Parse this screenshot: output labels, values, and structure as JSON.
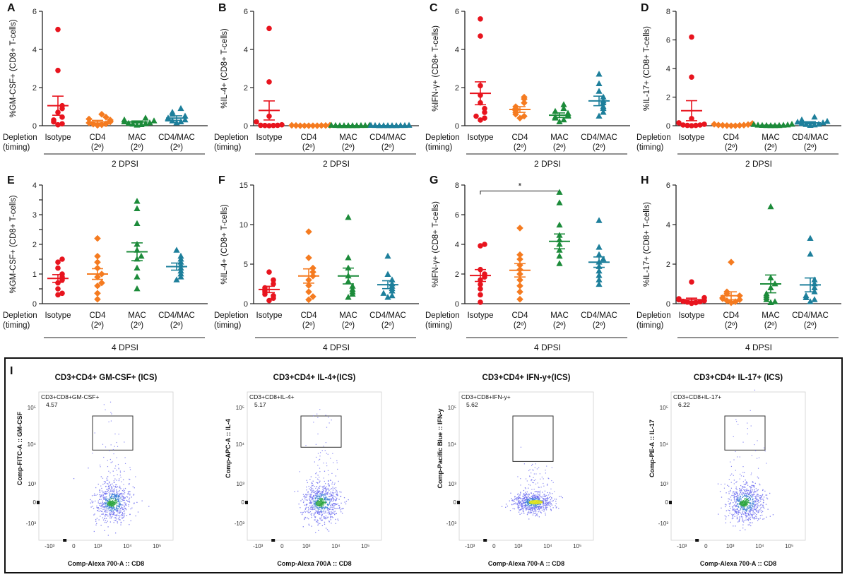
{
  "colors": {
    "isotype": "#e8141e",
    "cd4": "#f57b20",
    "mac": "#1c8b3a",
    "cd4mac": "#1d7f9b",
    "axis": "#222222"
  },
  "depletion_label": [
    "Depletion",
    "(timing)"
  ],
  "chart_data": [
    {
      "panel": "A",
      "type": "scatter",
      "ylabel": "%GM-CSF+ (CD8+ T-cells)",
      "ylim": [
        0,
        6
      ],
      "yticks": [
        0,
        2,
        4,
        6
      ],
      "dpsi": "2 DPSI",
      "categories": [
        {
          "name": "Isotype"
        },
        {
          "name": "CD4",
          "sub": "(2º)"
        },
        {
          "name": "MAC",
          "sub": "(2º)"
        },
        {
          "name": "CD4/MAC",
          "sub": "(2º)"
        }
      ],
      "series": [
        {
          "name": "Isotype",
          "marker": "circle",
          "mean": 1.05,
          "sem": 0.5,
          "values": [
            5.05,
            2.9,
            1.05,
            0.9,
            0.7,
            0.45,
            0.3,
            0.2,
            0.1,
            0.05
          ]
        },
        {
          "name": "CD4",
          "marker": "diamond",
          "mean": 0.2,
          "sem": 0.08,
          "values": [
            0.6,
            0.45,
            0.35,
            0.3,
            0.25,
            0.2,
            0.15,
            0.1,
            0.08,
            0.05,
            0.02
          ]
        },
        {
          "name": "MAC",
          "marker": "triangle",
          "mean": 0.2,
          "sem": 0.05,
          "values": [
            0.4,
            0.3,
            0.25,
            0.2,
            0.15,
            0.12,
            0.1,
            0.08,
            0.05,
            0.03
          ]
        },
        {
          "name": "CD4/MAC",
          "marker": "triangle",
          "mean": 0.4,
          "sem": 0.12,
          "values": [
            0.9,
            0.7,
            0.6,
            0.5,
            0.4,
            0.35,
            0.3,
            0.25,
            0.2,
            0.15
          ]
        }
      ]
    },
    {
      "panel": "B",
      "type": "scatter",
      "ylabel": "%IL-4+ (CD8+ T-cells)",
      "ylim": [
        0,
        6
      ],
      "yticks": [
        0,
        2,
        4,
        6
      ],
      "dpsi": "2 DPSI",
      "categories": [
        {
          "name": "Isotype"
        },
        {
          "name": "CD4",
          "sub": "(2º)"
        },
        {
          "name": "MAC",
          "sub": "(2º)"
        },
        {
          "name": "CD4/MAC",
          "sub": "(2º)"
        }
      ],
      "series": [
        {
          "name": "Isotype",
          "marker": "circle",
          "mean": 0.8,
          "sem": 0.5,
          "values": [
            5.1,
            2.3,
            0.5,
            0.2,
            0.05,
            0.02,
            0.02,
            0.01,
            0.01,
            0.0
          ]
        },
        {
          "name": "CD4",
          "marker": "diamond",
          "mean": 0.0,
          "sem": 0.0,
          "values": [
            0.02,
            0.02,
            0.01,
            0.01,
            0.01,
            0.0,
            0.0,
            0.0,
            0.0,
            0.0
          ]
        },
        {
          "name": "MAC",
          "marker": "triangle",
          "mean": 0.0,
          "sem": 0.0,
          "values": [
            0.02,
            0.02,
            0.01,
            0.01,
            0.01,
            0.0,
            0.0,
            0.0,
            0.0,
            0.0
          ]
        },
        {
          "name": "CD4/MAC",
          "marker": "triangle",
          "mean": 0.0,
          "sem": 0.0,
          "values": [
            0.02,
            0.02,
            0.01,
            0.01,
            0.01,
            0.0,
            0.0,
            0.0,
            0.0,
            0.0
          ]
        }
      ]
    },
    {
      "panel": "C",
      "type": "scatter",
      "ylabel": "%IFN-γ+ (CD8+ T-cells)",
      "ylim": [
        0,
        6
      ],
      "yticks": [
        0,
        2,
        4,
        6
      ],
      "dpsi": "2 DPSI",
      "categories": [
        {
          "name": "Isotype"
        },
        {
          "name": "CD4",
          "sub": "(2º)"
        },
        {
          "name": "MAC",
          "sub": "(2º)"
        },
        {
          "name": "CD4/MAC",
          "sub": "(2º)"
        }
      ],
      "series": [
        {
          "name": "Isotype",
          "marker": "circle",
          "mean": 1.7,
          "sem": 0.6,
          "values": [
            5.6,
            4.7,
            2.1,
            1.6,
            1.2,
            0.9,
            0.7,
            0.5,
            0.4,
            0.3
          ]
        },
        {
          "name": "CD4",
          "marker": "diamond",
          "mean": 0.85,
          "sem": 0.15,
          "values": [
            1.5,
            1.4,
            1.2,
            1.0,
            0.9,
            0.8,
            0.7,
            0.6,
            0.5,
            0.4
          ]
        },
        {
          "name": "MAC",
          "marker": "triangle",
          "mean": 0.55,
          "sem": 0.12,
          "values": [
            1.1,
            0.9,
            0.75,
            0.65,
            0.55,
            0.5,
            0.45,
            0.4,
            0.3,
            0.2
          ]
        },
        {
          "name": "CD4/MAC",
          "marker": "triangle",
          "mean": 1.3,
          "sem": 0.25,
          "values": [
            2.7,
            2.2,
            1.8,
            1.5,
            1.3,
            1.2,
            1.0,
            0.9,
            0.7,
            0.5
          ]
        }
      ]
    },
    {
      "panel": "D",
      "type": "scatter",
      "ylabel": "%IL-17+ (CD8+ T-cells)",
      "ylim": [
        0,
        8
      ],
      "yticks": [
        0,
        2,
        4,
        6,
        8
      ],
      "dpsi": "2 DPSI",
      "categories": [
        {
          "name": "Isotype"
        },
        {
          "name": "CD4",
          "sub": "(2º)"
        },
        {
          "name": "MAC",
          "sub": "(2º)"
        },
        {
          "name": "CD4/MAC",
          "sub": "(2º)"
        }
      ],
      "series": [
        {
          "name": "Isotype",
          "marker": "circle",
          "mean": 1.05,
          "sem": 0.7,
          "values": [
            6.2,
            3.4,
            0.5,
            0.2,
            0.1,
            0.05,
            0.05,
            0.02,
            0.02,
            0.0
          ]
        },
        {
          "name": "CD4",
          "marker": "diamond",
          "mean": 0.05,
          "sem": 0.02,
          "values": [
            0.15,
            0.1,
            0.08,
            0.05,
            0.04,
            0.03,
            0.02,
            0.01,
            0.0,
            0.0
          ]
        },
        {
          "name": "MAC",
          "marker": "triangle",
          "mean": 0.03,
          "sem": 0.01,
          "values": [
            0.1,
            0.08,
            0.05,
            0.04,
            0.03,
            0.02,
            0.01,
            0.01,
            0.0,
            0.0
          ]
        },
        {
          "name": "CD4/MAC",
          "marker": "triangle",
          "mean": 0.2,
          "sem": 0.08,
          "values": [
            0.6,
            0.4,
            0.3,
            0.25,
            0.2,
            0.15,
            0.1,
            0.08,
            0.05,
            0.02
          ]
        }
      ]
    },
    {
      "panel": "E",
      "type": "scatter",
      "ylabel": "%GM-CSF+ (CD8+ T-cells)",
      "ylim": [
        0,
        4
      ],
      "yticks": [
        0,
        0.5,
        1,
        1.5,
        2,
        2.5,
        3,
        3.5,
        4
      ],
      "ytick_labels": [
        "0",
        "",
        "1",
        "",
        "2",
        "",
        "3",
        "",
        "4"
      ],
      "dpsi": "4 DPSI",
      "categories": [
        {
          "name": "Isotype"
        },
        {
          "name": "CD4",
          "sub": "(2º)"
        },
        {
          "name": "MAC",
          "sub": "(2º)"
        },
        {
          "name": "CD4/MAC",
          "sub": "(2º)"
        }
      ],
      "series": [
        {
          "name": "Isotype",
          "marker": "circle",
          "mean": 0.85,
          "sem": 0.13,
          "values": [
            1.5,
            1.4,
            1.2,
            1.0,
            0.9,
            0.8,
            0.7,
            0.5,
            0.35,
            0.3
          ]
        },
        {
          "name": "CD4",
          "marker": "diamond",
          "mean": 1.0,
          "sem": 0.18,
          "values": [
            2.2,
            1.6,
            1.4,
            1.2,
            1.0,
            0.9,
            0.7,
            0.6,
            0.35,
            0.15
          ]
        },
        {
          "name": "MAC",
          "marker": "triangle",
          "mean": 1.75,
          "sem": 0.3,
          "values": [
            3.45,
            3.2,
            2.7,
            2.0,
            1.8,
            1.6,
            1.5,
            1.2,
            0.9,
            0.5
          ]
        },
        {
          "name": "CD4/MAC",
          "marker": "triangle",
          "mean": 1.25,
          "sem": 0.12,
          "values": [
            1.8,
            1.6,
            1.5,
            1.4,
            1.3,
            1.2,
            1.1,
            1.0,
            0.9,
            0.8
          ]
        }
      ]
    },
    {
      "panel": "F",
      "type": "scatter",
      "ylabel": "%IL-4+ (CD8+ T-cells)",
      "ylim": [
        0,
        15
      ],
      "yticks": [
        0,
        5,
        10,
        15
      ],
      "dpsi": "4 DPSI",
      "categories": [
        {
          "name": "Isotype"
        },
        {
          "name": "CD4",
          "sub": "(2º)"
        },
        {
          "name": "MAC",
          "sub": "(2º)"
        },
        {
          "name": "CD4/MAC",
          "sub": "(2º)"
        }
      ],
      "series": [
        {
          "name": "Isotype",
          "marker": "circle",
          "mean": 1.8,
          "sem": 0.4,
          "values": [
            4.0,
            3.0,
            2.5,
            2.0,
            1.7,
            1.5,
            1.2,
            1.0,
            0.7,
            0.4
          ]
        },
        {
          "name": "CD4",
          "marker": "diamond",
          "mean": 3.5,
          "sem": 0.9,
          "values": [
            9.1,
            5.8,
            4.5,
            4.0,
            3.5,
            3.0,
            2.3,
            1.5,
            0.9,
            0.5
          ]
        },
        {
          "name": "MAC",
          "marker": "triangle",
          "mean": 3.5,
          "sem": 1.0,
          "values": [
            10.9,
            5.8,
            4.5,
            3.5,
            2.8,
            2.2,
            1.8,
            1.5,
            1.2,
            0.8
          ]
        },
        {
          "name": "CD4/MAC",
          "marker": "triangle",
          "mean": 2.4,
          "sem": 0.5,
          "values": [
            6.0,
            3.7,
            3.0,
            2.5,
            2.2,
            1.9,
            1.6,
            1.3,
            1.0,
            0.8
          ]
        }
      ]
    },
    {
      "panel": "G",
      "type": "scatter",
      "ylabel": "%IFN-γ+ (CD8+ T-cells)",
      "ylim": [
        0,
        8
      ],
      "yticks": [
        0,
        2,
        4,
        6,
        8
      ],
      "dpsi": "4 DPSI",
      "significance": {
        "from": 0,
        "to": 2,
        "y": 7.6,
        "label": "*"
      },
      "categories": [
        {
          "name": "Isotype"
        },
        {
          "name": "CD4",
          "sub": "(2º)"
        },
        {
          "name": "MAC",
          "sub": "(2º)"
        },
        {
          "name": "CD4/MAC",
          "sub": "(2º)"
        }
      ],
      "series": [
        {
          "name": "Isotype",
          "marker": "circle",
          "mean": 1.9,
          "sem": 0.4,
          "values": [
            4.0,
            3.9,
            2.3,
            2.0,
            1.8,
            1.6,
            1.3,
            1.0,
            0.6,
            0.1
          ]
        },
        {
          "name": "CD4",
          "marker": "diamond",
          "mean": 2.25,
          "sem": 0.45,
          "values": [
            5.1,
            3.3,
            3.0,
            2.6,
            2.3,
            2.0,
            1.6,
            1.2,
            0.8,
            0.3
          ]
        },
        {
          "name": "MAC",
          "marker": "triangle",
          "mean": 4.2,
          "sem": 0.5,
          "values": [
            7.5,
            6.8,
            5.3,
            4.6,
            4.3,
            4.0,
            3.6,
            3.2,
            2.7
          ]
        },
        {
          "name": "CD4/MAC",
          "marker": "triangle",
          "mean": 2.8,
          "sem": 0.35,
          "values": [
            5.6,
            3.8,
            3.3,
            3.0,
            2.8,
            2.5,
            2.2,
            1.9,
            1.6,
            1.3
          ]
        }
      ]
    },
    {
      "panel": "H",
      "type": "scatter",
      "ylabel": "%IL-17+ (CD8+ T-cells)",
      "ylim": [
        0,
        6
      ],
      "yticks": [
        0,
        2,
        4,
        6
      ],
      "dpsi": "4 DPSI",
      "categories": [
        {
          "name": "Isotype"
        },
        {
          "name": "CD4",
          "sub": "(2º)"
        },
        {
          "name": "MAC",
          "sub": "(2º)"
        },
        {
          "name": "CD4/MAC",
          "sub": "(2º)"
        }
      ],
      "series": [
        {
          "name": "Isotype",
          "marker": "circle",
          "mean": 0.2,
          "sem": 0.08,
          "values": [
            1.1,
            0.3,
            0.25,
            0.2,
            0.15,
            0.12,
            0.1,
            0.08,
            0.05,
            0.02
          ]
        },
        {
          "name": "CD4",
          "marker": "diamond",
          "mean": 0.4,
          "sem": 0.2,
          "values": [
            2.1,
            0.6,
            0.5,
            0.4,
            0.3,
            0.25,
            0.2,
            0.15,
            0.1,
            0.05
          ]
        },
        {
          "name": "MAC",
          "marker": "triangle",
          "mean": 1.0,
          "sem": 0.45,
          "values": [
            4.9,
            1.3,
            1.0,
            0.8,
            0.5,
            0.4,
            0.3,
            0.2,
            0.1,
            0.05
          ]
        },
        {
          "name": "CD4/MAC",
          "marker": "triangle",
          "mean": 0.95,
          "sem": 0.35,
          "values": [
            3.3,
            2.5,
            1.2,
            1.0,
            0.8,
            0.6,
            0.4,
            0.3,
            0.2,
            0.1
          ]
        }
      ]
    }
  ],
  "flow": {
    "panel": "I",
    "x_ticks": [
      "-10³",
      "0",
      "10³",
      "10⁴",
      "10⁵"
    ],
    "y_ticks": [
      "10⁵",
      "10⁴",
      "10³",
      "0",
      "-10³"
    ],
    "plots": [
      {
        "title": "CD3+CD4+ GM-CSF+ (ICS)",
        "gate_label": "CD3+CD8+GM-CSF+",
        "gate_value": "4.57",
        "ylabel": "Comp-FITC-A :: GM-CSF",
        "xlabel": "Comp-Alexa 700-A :: CD8",
        "gate_ymin": 2.75
      },
      {
        "title": "CD3+CD4+ IL-4+(ICS)",
        "gate_label": "CD3+CD8+IL-4+",
        "gate_value": "5.17",
        "ylabel": "Comp-APC-A :: IL-4",
        "xlabel": "Comp-Alexa 700A :: CD8",
        "gate_ymin": 2.9
      },
      {
        "title": "CD3+CD4+ IFN-y+(ICS)",
        "gate_label": "CD3+CD8+IFN-y+",
        "gate_value": "5.62",
        "ylabel": "Comp-Pacific Blue :: IFN-y",
        "xlabel": "Comp-Alexa 700-A :: CD8",
        "gate_ymin": 2.15
      },
      {
        "title": "CD3+CD4+ IL-17+ (ICS)",
        "gate_label": "CD3+CD8+IL-17+",
        "gate_value": "6.22",
        "ylabel": "Comp-PE-A :: IL-17",
        "xlabel": "Comp-Alexa 700-A :: CD8",
        "gate_ymin": 2.75
      }
    ]
  }
}
